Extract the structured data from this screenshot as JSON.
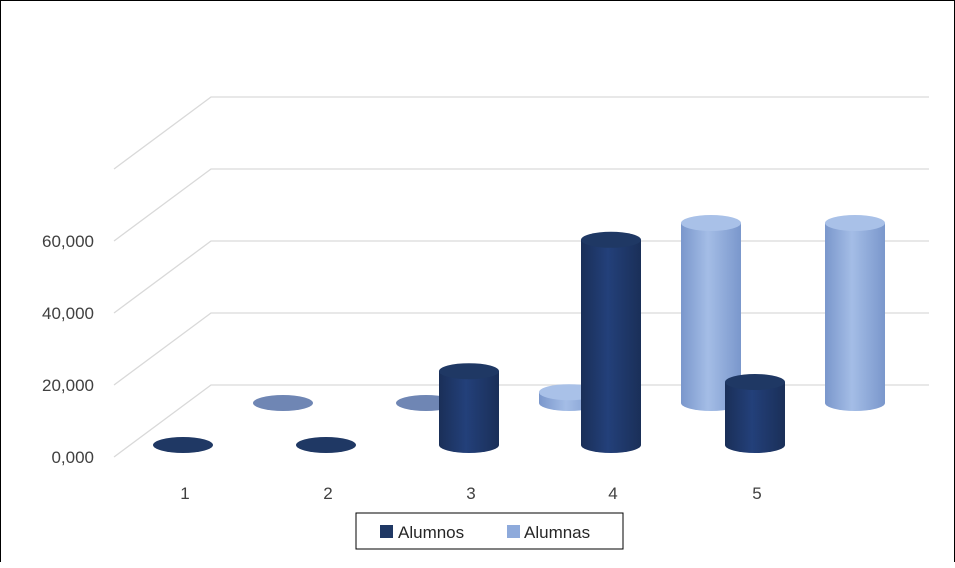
{
  "colors": {
    "alumnos": "#1f3864",
    "alumnas": "#8eaadb",
    "grid": "#d9d9d9",
    "text": "#404040"
  },
  "chart_data": {
    "type": "bar",
    "style": "3d-cylinder",
    "categories": [
      "1",
      "2",
      "3",
      "4",
      "5"
    ],
    "series": [
      {
        "name": "Alumnos",
        "values": [
          0,
          0,
          20500,
          57000,
          17500
        ]
      },
      {
        "name": "Alumnas",
        "values": [
          0,
          0,
          3000,
          50000,
          50000
        ]
      }
    ],
    "ylim": [
      0,
      60000
    ],
    "y_ticks": [
      "0,000",
      "20,000",
      "40,000",
      "60,000"
    ],
    "grid": true,
    "legend": "bottom"
  }
}
